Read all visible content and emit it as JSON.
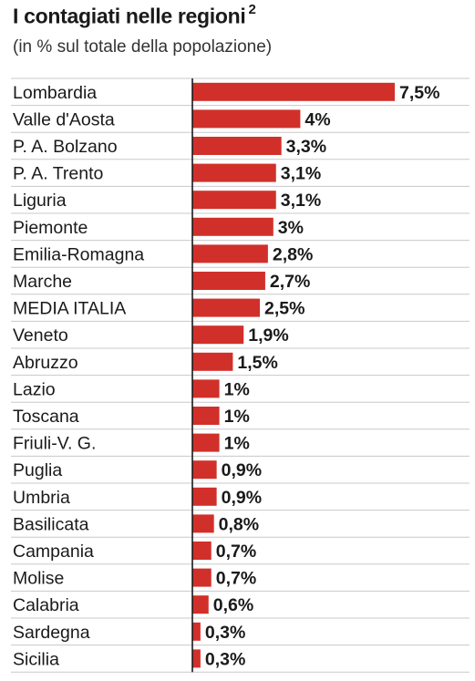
{
  "chart_data": {
    "type": "bar",
    "orientation": "horizontal",
    "title": "I contagiati nelle regioni",
    "title_note": "2",
    "subtitle": "(in % sul totale della popolazione)",
    "categories": [
      "Lombardia",
      "Valle d'Aosta",
      "P. A. Bolzano",
      "P. A. Trento",
      "Liguria",
      "Piemonte",
      "Emilia-Romagna",
      "Marche",
      "MEDIA ITALIA",
      "Veneto",
      "Abruzzo",
      "Lazio",
      "Toscana",
      "Friuli-V. G.",
      "Puglia",
      "Umbria",
      "Basilicata",
      "Campania",
      "Molise",
      "Calabria",
      "Sardegna",
      "Sicilia"
    ],
    "values": [
      7.5,
      4,
      3.3,
      3.1,
      3.1,
      3,
      2.8,
      2.7,
      2.5,
      1.9,
      1.5,
      1,
      1,
      1,
      0.9,
      0.9,
      0.8,
      0.7,
      0.7,
      0.6,
      0.3,
      0.3
    ],
    "value_labels": [
      "7,5%",
      "4%",
      "3,3%",
      "3,1%",
      "3,1%",
      "3%",
      "2,8%",
      "2,7%",
      "2,5%",
      "1,9%",
      "1,5%",
      "1%",
      "1%",
      "1%",
      "0,9%",
      "0,9%",
      "0,8%",
      "0,7%",
      "0,7%",
      "0,6%",
      "0,3%",
      "0,3%"
    ],
    "xlim": [
      0,
      7.5
    ],
    "grid": false,
    "bar_color": "#d1302a"
  }
}
